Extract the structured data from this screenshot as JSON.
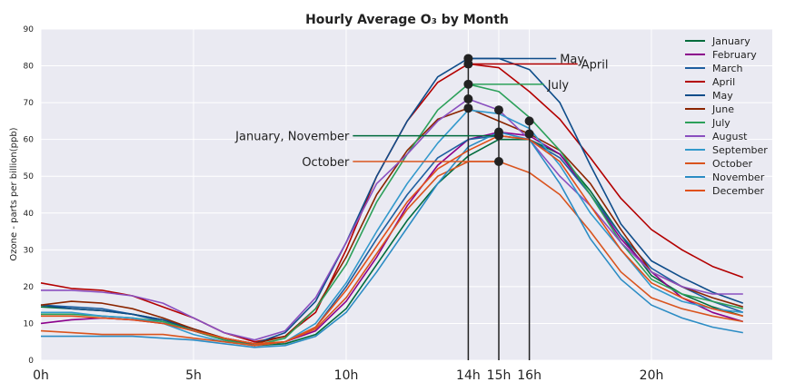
{
  "chart_data": {
    "type": "line",
    "title": "Hourly Average O₃ by Month",
    "xlabel": "",
    "ylabel": "Ozone - parts per billion(ppb)",
    "xlim": [
      0,
      24
    ],
    "ylim": [
      0,
      90
    ],
    "grid": true,
    "legend_position": "top-right",
    "x": [
      0,
      1,
      2,
      3,
      4,
      5,
      6,
      7,
      8,
      9,
      10,
      11,
      12,
      13,
      14,
      15,
      16,
      17,
      18,
      19,
      20,
      21,
      22,
      23
    ],
    "yticks": [
      0,
      10,
      20,
      30,
      40,
      50,
      60,
      70,
      80,
      90
    ],
    "xticks": [
      {
        "value": 0,
        "label": "0h"
      },
      {
        "value": 5,
        "label": "5h"
      },
      {
        "value": 10,
        "label": "10h"
      },
      {
        "value": 14,
        "label": "14h"
      },
      {
        "value": 15,
        "label": "15h"
      },
      {
        "value": 16,
        "label": "16h"
      },
      {
        "value": 20,
        "label": "20h"
      }
    ],
    "series": [
      {
        "name": "January",
        "color": "#006b3c",
        "values": [
          14.5,
          14,
          13.5,
          12.5,
          11,
          8,
          6,
          4,
          4.5,
          7,
          14,
          26,
          38,
          48,
          55.5,
          60,
          60,
          56,
          46,
          34,
          23,
          18,
          14.5,
          12
        ]
      },
      {
        "name": "February",
        "color": "#8b008b",
        "values": [
          10,
          11,
          11.5,
          11,
          10,
          8,
          5.5,
          4,
          5,
          8,
          16,
          28,
          42,
          53,
          60,
          62,
          61,
          56,
          45,
          33,
          24,
          17,
          13,
          10.5
        ]
      },
      {
        "name": "March",
        "color": "#1f5fa0",
        "values": [
          15,
          14.5,
          14,
          12.5,
          10.5,
          8,
          5.5,
          4,
          5,
          9,
          20,
          33,
          45,
          55,
          60,
          61,
          60,
          55,
          45,
          34,
          25,
          20,
          16,
          13
        ]
      },
      {
        "name": "April",
        "color": "#b30000",
        "values": [
          21,
          19.5,
          19,
          17.5,
          14.5,
          11.5,
          7.5,
          5,
          6.5,
          13,
          30,
          50,
          65,
          75.5,
          80.5,
          79.5,
          73,
          65.5,
          55,
          44,
          35.5,
          30,
          25.5,
          22.5
        ]
      },
      {
        "name": "May",
        "color": "#0f4d8a",
        "values": [
          15,
          14,
          13.5,
          12.5,
          11,
          8.5,
          6,
          4.5,
          7.5,
          16,
          32,
          50,
          65,
          77,
          82,
          82,
          79,
          70,
          53,
          37,
          27,
          22.5,
          18.5,
          15.5
        ]
      },
      {
        "name": "June",
        "color": "#8b2500",
        "values": [
          15,
          16,
          15.5,
          14,
          11.5,
          8.5,
          6,
          4.5,
          6.5,
          14,
          28,
          45,
          57,
          65.5,
          68.5,
          65,
          61.5,
          57,
          48,
          35.5,
          24,
          20,
          17,
          14.5
        ]
      },
      {
        "name": "July",
        "color": "#2ca05a",
        "values": [
          12.5,
          12.5,
          12,
          11.5,
          10.5,
          8,
          5.5,
          4,
          6,
          14,
          26,
          43,
          56,
          68,
          75,
          73,
          66,
          57,
          45,
          32,
          22,
          18,
          16,
          14
        ]
      },
      {
        "name": "August",
        "color": "#8a4fbf",
        "values": [
          19,
          19,
          18.5,
          17.5,
          15.5,
          11.5,
          7.5,
          5.5,
          8,
          17,
          32,
          48,
          56,
          65,
          71,
          68,
          60,
          50,
          42,
          32,
          24,
          20,
          18,
          18
        ]
      },
      {
        "name": "September",
        "color": "#3399cc",
        "values": [
          13,
          13,
          12,
          11.5,
          10,
          7,
          5,
          4,
          5,
          10,
          21,
          35,
          48,
          59,
          68,
          67,
          63,
          53,
          40,
          30,
          20,
          16,
          14,
          13
        ]
      },
      {
        "name": "October",
        "color": "#d9541e",
        "values": [
          8,
          7.5,
          7,
          7,
          7,
          6,
          5,
          4,
          5,
          8.5,
          17,
          29,
          41,
          50,
          54,
          54,
          51,
          45,
          35,
          24,
          17,
          14,
          12,
          10.5
        ]
      },
      {
        "name": "November",
        "color": "#2b8cc4",
        "values": [
          6.5,
          6.5,
          6.5,
          6.5,
          6,
          5.5,
          4.5,
          3.5,
          4,
          6.5,
          13,
          24,
          36,
          48,
          58,
          62,
          60,
          48,
          33,
          22,
          15,
          11.5,
          9,
          7.5
        ]
      },
      {
        "name": "December",
        "color": "#e0501a",
        "values": [
          12,
          12,
          11.5,
          11,
          10,
          8,
          6,
          4.5,
          5,
          9,
          19,
          31,
          43,
          52,
          57,
          61,
          60,
          54,
          42,
          30,
          21,
          17,
          14,
          12
        ]
      }
    ],
    "annotations": [
      {
        "label": "May",
        "month": "May",
        "hour": 14,
        "value": 82,
        "text_x": 17.0
      },
      {
        "label": "April",
        "month": "April",
        "hour": 14,
        "value": 80.5,
        "text_x": 17.7
      },
      {
        "label": "July",
        "month": "July",
        "hour": 14,
        "value": 75,
        "text_x": 16.6
      },
      {
        "label": "January, November",
        "month": "January",
        "hour": 15,
        "value": 61,
        "text_x": 10.1
      },
      {
        "label": "October",
        "month": "October",
        "hour": 15,
        "value": 54,
        "text_x": 10.1
      }
    ],
    "peak_points": [
      {
        "hour": 14,
        "value": 82
      },
      {
        "hour": 14,
        "value": 80.5
      },
      {
        "hour": 14,
        "value": 75
      },
      {
        "hour": 14,
        "value": 71
      },
      {
        "hour": 14,
        "value": 68.5
      },
      {
        "hour": 15,
        "value": 68
      },
      {
        "hour": 15,
        "value": 62
      },
      {
        "hour": 15,
        "value": 61
      },
      {
        "hour": 15,
        "value": 54
      },
      {
        "hour": 16,
        "value": 65
      },
      {
        "hour": 16,
        "value": 61.5
      }
    ],
    "peak_hours": [
      14,
      15,
      16
    ]
  }
}
